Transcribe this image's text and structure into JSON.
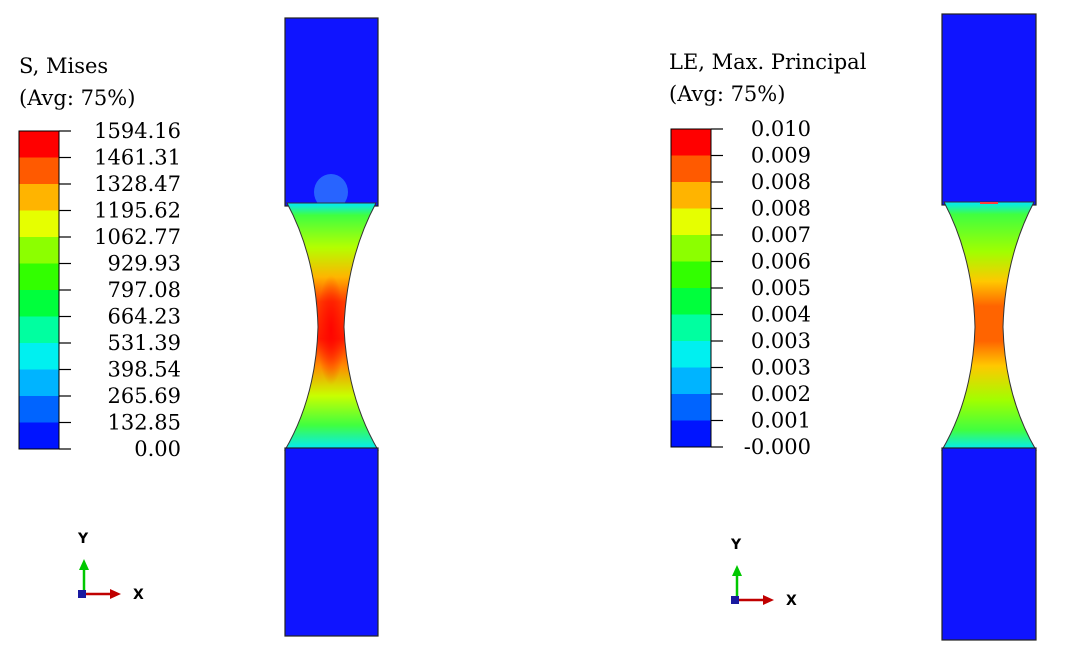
{
  "panels": [
    {
      "legend": {
        "title": "S, Mises",
        "subtitle": "(Avg: 75%)",
        "values": [
          "1594.16",
          "1461.31",
          "1328.47",
          "1195.62",
          "1062.77",
          "929.93",
          "797.08",
          "664.23",
          "531.39",
          "398.54",
          "265.69",
          "132.85",
          "0.00"
        ]
      },
      "triad": {
        "y_label": "Y",
        "x_label": "X"
      }
    },
    {
      "legend": {
        "title": "LE, Max. Principal",
        "subtitle": "(Avg: 75%)",
        "values": [
          "0.010",
          "0.009",
          "0.008",
          "0.008",
          "0.007",
          "0.006",
          "0.005",
          "0.004",
          "0.003",
          "0.003",
          "0.002",
          "0.001",
          "-0.000"
        ]
      },
      "triad": {
        "y_label": "Y",
        "x_label": "X"
      }
    }
  ],
  "colors": {
    "contour_bands_top_to_bottom": [
      "#ff0000",
      "#ff5a00",
      "#ffb400",
      "#e6ff00",
      "#8cff00",
      "#32ff00",
      "#00ff3c",
      "#00ffa0",
      "#00f0f0",
      "#00b4ff",
      "#0064ff",
      "#0014ff"
    ],
    "specimen_grip": "#0f14ff",
    "triad_y": "#00c800",
    "triad_x": "#c00000"
  }
}
